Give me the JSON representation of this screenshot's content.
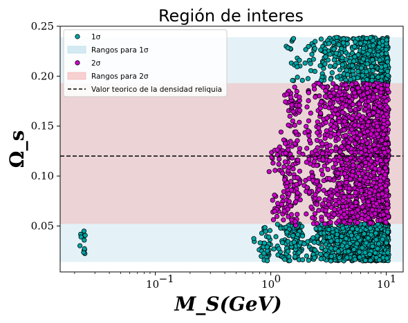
{
  "chart_data": {
    "type": "scatter",
    "title": "Región de interes",
    "xlabel": "M_S(GeV)",
    "ylabel": "Ω_s",
    "xscale": "log",
    "xlim": [
      0.015,
      14
    ],
    "ylim": [
      0.004,
      0.25
    ],
    "x_ticks": [
      {
        "value": 0.1,
        "label": "10",
        "exp": "−1"
      },
      {
        "value": 1,
        "label": "10",
        "exp": "0"
      },
      {
        "value": 10,
        "label": "10",
        "exp": "1"
      }
    ],
    "y_ticks": [
      {
        "value": 0.05,
        "label": "0.05"
      },
      {
        "value": 0.1,
        "label": "0.10"
      },
      {
        "value": 0.15,
        "label": "0.15"
      },
      {
        "value": 0.2,
        "label": "0.20"
      },
      {
        "value": 0.25,
        "label": "0.25"
      }
    ],
    "grid": false,
    "legend_position": "top-left",
    "bands": [
      {
        "name": "Rangos para 1σ",
        "ymin": 0.014,
        "ymax": 0.239,
        "color": "#add8e6",
        "opacity": 0.33
      },
      {
        "name": "Rangos para 2σ",
        "ymin": 0.052,
        "ymax": 0.193,
        "color": "#f4a6a6",
        "opacity": 0.4
      }
    ],
    "reference_line": {
      "name": "Valor teorico de la densidad reliquia",
      "y": 0.12,
      "style": "dashed",
      "color": "#000000"
    },
    "series": [
      {
        "name": "1σ",
        "color": "#00a6a6",
        "edge": "#000000",
        "clusters": [
          {
            "xmin": 0.021,
            "xmax": 0.025,
            "ymin": 0.017,
            "ymax": 0.045,
            "n": 12
          },
          {
            "xmin": 0.68,
            "xmax": 1.0,
            "ymin": 0.015,
            "ymax": 0.05,
            "n": 35
          },
          {
            "xmin": 1.0,
            "xmax": 1.9,
            "ymin": 0.015,
            "ymax": 0.052,
            "n": 110
          },
          {
            "xmin": 1.9,
            "xmax": 10.5,
            "ymin": 0.015,
            "ymax": 0.052,
            "n": 900
          },
          {
            "xmin": 1.7,
            "xmax": 10.5,
            "ymin": 0.193,
            "ymax": 0.239,
            "n": 420
          },
          {
            "xmin": 1.0,
            "xmax": 1.8,
            "ymin": 0.195,
            "ymax": 0.239,
            "n": 18
          }
        ]
      },
      {
        "name": "2σ",
        "color": "#cc00cc",
        "edge": "#000000",
        "clusters": [
          {
            "xmin": 0.95,
            "xmax": 1.45,
            "ymin": 0.055,
            "ymax": 0.13,
            "n": 60
          },
          {
            "xmin": 1.2,
            "xmax": 1.8,
            "ymin": 0.05,
            "ymax": 0.19,
            "n": 120
          },
          {
            "xmin": 1.8,
            "xmax": 10.5,
            "ymin": 0.052,
            "ymax": 0.193,
            "n": 1400
          }
        ]
      }
    ]
  }
}
